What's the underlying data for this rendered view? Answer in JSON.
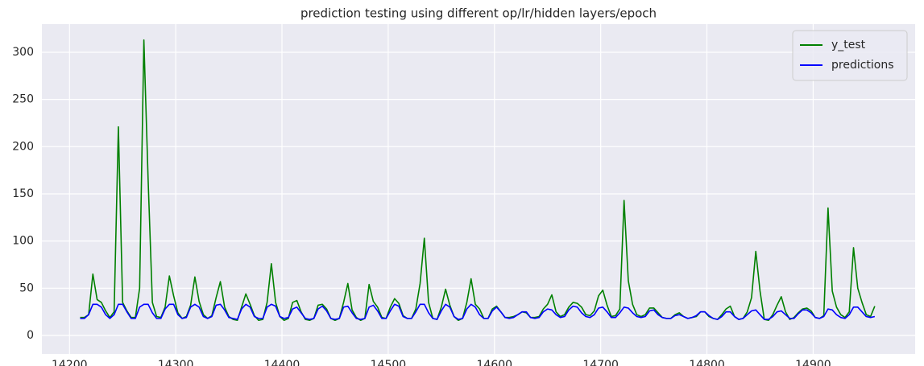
{
  "chart_data": {
    "type": "line",
    "title": "prediction testing using different op/lr/hidden layers/epoch",
    "x": [
      14210,
      14214,
      14218,
      14222,
      14226,
      14230,
      14234,
      14238,
      14242,
      14246,
      14250,
      14254,
      14258,
      14262,
      14266,
      14270,
      14274,
      14278,
      14282,
      14286,
      14290,
      14294,
      14298,
      14302,
      14306,
      14310,
      14314,
      14318,
      14322,
      14326,
      14330,
      14334,
      14338,
      14342,
      14346,
      14350,
      14354,
      14358,
      14362,
      14366,
      14370,
      14374,
      14378,
      14382,
      14386,
      14390,
      14394,
      14398,
      14402,
      14406,
      14410,
      14414,
      14418,
      14422,
      14426,
      14430,
      14434,
      14438,
      14442,
      14446,
      14450,
      14454,
      14458,
      14462,
      14466,
      14470,
      14474,
      14478,
      14482,
      14486,
      14490,
      14494,
      14498,
      14502,
      14506,
      14510,
      14514,
      14518,
      14522,
      14526,
      14530,
      14534,
      14538,
      14542,
      14546,
      14550,
      14554,
      14558,
      14562,
      14566,
      14570,
      14574,
      14578,
      14582,
      14586,
      14590,
      14594,
      14598,
      14602,
      14606,
      14610,
      14614,
      14618,
      14622,
      14626,
      14630,
      14634,
      14638,
      14642,
      14646,
      14650,
      14654,
      14658,
      14662,
      14666,
      14670,
      14674,
      14678,
      14682,
      14686,
      14690,
      14694,
      14698,
      14702,
      14706,
      14710,
      14714,
      14718,
      14722,
      14726,
      14730,
      14734,
      14738,
      14742,
      14746,
      14750,
      14754,
      14758,
      14762,
      14766,
      14770,
      14774,
      14778,
      14782,
      14786,
      14790,
      14794,
      14798,
      14802,
      14806,
      14810,
      14814,
      14818,
      14822,
      14826,
      14830,
      14834,
      14838,
      14842,
      14846,
      14850,
      14854,
      14858,
      14862,
      14866,
      14870,
      14874,
      14878,
      14882,
      14886,
      14890,
      14894,
      14898,
      14902,
      14906,
      14910,
      14914,
      14918,
      14922,
      14926,
      14930,
      14934,
      14938,
      14942,
      14946,
      14950,
      14954,
      14958
    ],
    "series": [
      {
        "name": "y_test",
        "color": "#008000",
        "values": [
          19,
          19,
          22,
          65,
          38,
          35,
          26,
          19,
          25,
          221,
          35,
          26,
          19,
          19,
          50,
          313,
          165,
          35,
          20,
          19,
          30,
          63,
          42,
          24,
          18,
          20,
          32,
          62,
          36,
          22,
          18,
          21,
          40,
          57,
          30,
          20,
          17,
          16,
          30,
          44,
          33,
          21,
          16,
          17,
          35,
          76,
          35,
          20,
          16,
          18,
          35,
          37,
          25,
          17,
          16,
          18,
          32,
          33,
          28,
          18,
          16,
          18,
          35,
          55,
          27,
          19,
          16,
          18,
          54,
          36,
          30,
          19,
          18,
          30,
          39,
          34,
          21,
          18,
          18,
          28,
          55,
          103,
          35,
          18,
          17,
          30,
          49,
          32,
          20,
          16,
          18,
          35,
          60,
          33,
          28,
          18,
          18,
          28,
          31,
          25,
          19,
          19,
          20,
          22,
          25,
          24,
          19,
          19,
          20,
          28,
          33,
          43,
          25,
          20,
          22,
          30,
          35,
          34,
          30,
          22,
          21,
          26,
          42,
          48,
          32,
          20,
          21,
          28,
          143,
          58,
          33,
          22,
          20,
          22,
          29,
          29,
          24,
          19,
          18,
          18,
          22,
          24,
          20,
          18,
          19,
          20,
          25,
          25,
          20,
          18,
          17,
          22,
          28,
          31,
          20,
          17,
          18,
          25,
          40,
          89,
          47,
          17,
          16,
          22,
          32,
          41,
          25,
          17,
          19,
          24,
          28,
          29,
          26,
          19,
          18,
          21,
          135,
          47,
          30,
          22,
          19,
          25,
          93,
          50,
          35,
          22,
          20,
          31
        ]
      },
      {
        "name": "predictions",
        "color": "#0000ff",
        "values": [
          18,
          18,
          22,
          33,
          33,
          30,
          22,
          18,
          22,
          33,
          33,
          25,
          18,
          18,
          30,
          33,
          33,
          24,
          18,
          18,
          28,
          33,
          33,
          22,
          18,
          19,
          30,
          33,
          30,
          20,
          18,
          20,
          32,
          33,
          27,
          19,
          18,
          17,
          28,
          33,
          30,
          20,
          18,
          18,
          30,
          33,
          31,
          20,
          18,
          19,
          28,
          30,
          24,
          18,
          17,
          18,
          28,
          31,
          26,
          18,
          17,
          18,
          30,
          31,
          24,
          18,
          17,
          18,
          30,
          32,
          26,
          18,
          18,
          26,
          33,
          31,
          20,
          18,
          18,
          25,
          33,
          33,
          24,
          18,
          17,
          26,
          33,
          30,
          20,
          17,
          18,
          28,
          33,
          30,
          22,
          18,
          18,
          26,
          30,
          25,
          19,
          18,
          19,
          22,
          25,
          25,
          19,
          18,
          19,
          25,
          28,
          27,
          22,
          19,
          20,
          27,
          31,
          30,
          24,
          20,
          19,
          22,
          29,
          30,
          25,
          19,
          19,
          24,
          30,
          29,
          24,
          20,
          19,
          20,
          26,
          27,
          22,
          19,
          18,
          18,
          21,
          22,
          20,
          18,
          19,
          21,
          25,
          25,
          21,
          18,
          17,
          20,
          25,
          25,
          20,
          17,
          18,
          22,
          26,
          27,
          22,
          17,
          17,
          20,
          25,
          26,
          22,
          18,
          18,
          23,
          27,
          27,
          24,
          19,
          18,
          20,
          28,
          27,
          22,
          19,
          18,
          22,
          30,
          30,
          25,
          20,
          19,
          20
        ]
      }
    ],
    "xlim": [
      14174,
      14996
    ],
    "xticks": [
      14200,
      14300,
      14400,
      14500,
      14600,
      14700,
      14800,
      14900
    ],
    "ylim": [
      -19.6,
      329.8
    ],
    "yticks": [
      0,
      50,
      100,
      150,
      200,
      250,
      300
    ],
    "grid": true,
    "legend": "upper right"
  }
}
